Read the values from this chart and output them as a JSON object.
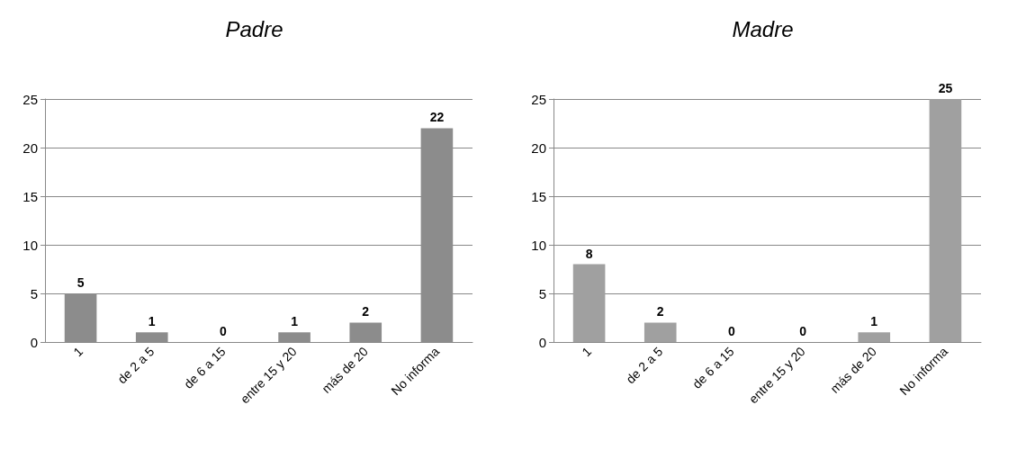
{
  "chart_data": [
    {
      "type": "bar",
      "title": "Padre",
      "categories": [
        "1",
        "de 2 a 5",
        "de 6 a 15",
        "entre 15 y 20",
        "más de 20",
        "No informa"
      ],
      "values": [
        5,
        1,
        0,
        1,
        2,
        22
      ],
      "color": "#8c8c8c",
      "ylim": [
        0,
        25
      ],
      "yticks": [
        0,
        5,
        10,
        15,
        20,
        25
      ],
      "grid": "y",
      "data_labels": true
    },
    {
      "type": "bar",
      "title": "Madre",
      "categories": [
        "1",
        "de 2 a 5",
        "de 6 a 15",
        "entre 15 y 20",
        "más de 20",
        "No informa"
      ],
      "values": [
        8,
        2,
        0,
        0,
        1,
        25
      ],
      "color": "#a0a0a0",
      "ylim": [
        0,
        25
      ],
      "yticks": [
        0,
        5,
        10,
        15,
        20,
        25
      ],
      "grid": "y",
      "data_labels": true
    }
  ]
}
